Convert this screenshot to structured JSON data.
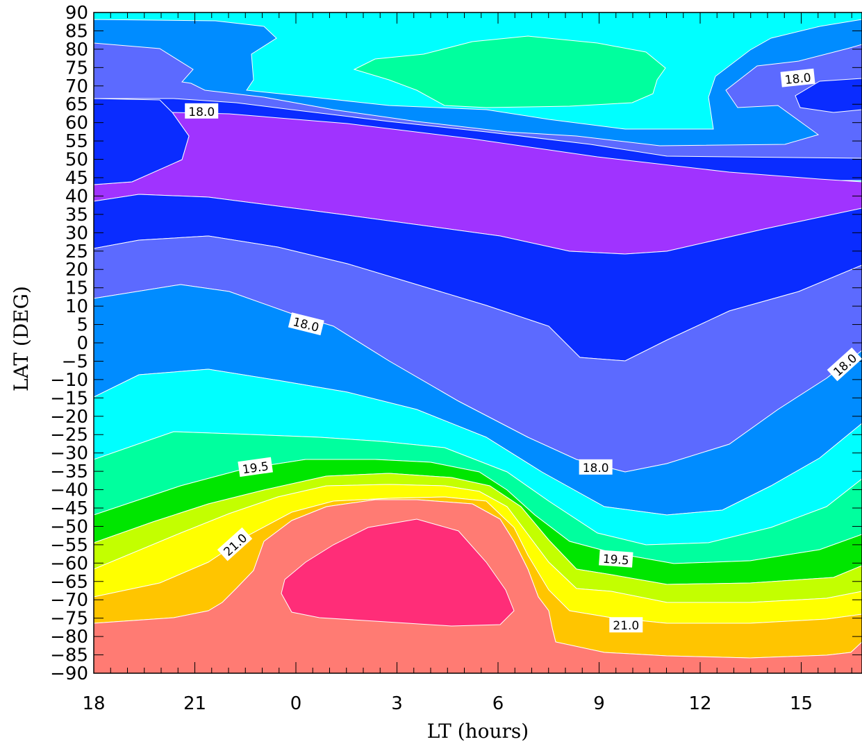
{
  "chart_data": {
    "type": "contour",
    "title": "",
    "xlabel": "LT (hours)",
    "ylabel": "LAT (DEG)",
    "x_ticks": [
      "18",
      "21",
      "0",
      "3",
      "6",
      "9",
      "12",
      "15"
    ],
    "x_minor_step_hours": 0.5,
    "x_range_hours_from_18": [
      0,
      22.8
    ],
    "y_ticks": [
      90,
      85,
      80,
      75,
      70,
      65,
      60,
      55,
      50,
      45,
      40,
      35,
      30,
      25,
      20,
      15,
      10,
      5,
      0,
      -5,
      -10,
      -15,
      -20,
      -25,
      -30,
      -35,
      -40,
      -45,
      -50,
      -55,
      -60,
      -65,
      -70,
      -75,
      -80,
      -85,
      -90
    ],
    "ylim": [
      -90,
      90
    ],
    "grid": false,
    "legend": "none",
    "contour_levels": [
      16.5,
      17.0,
      17.5,
      18.0,
      18.5,
      19.0,
      19.5,
      20.0,
      20.5,
      21.0,
      21.5
    ],
    "fill_colors": {
      "below_16.5": "#a033ff",
      "16.5_17.0": "#0a2cff",
      "17.0_17.5": "#5c6aff",
      "17.5_18.0": "#5c6aff",
      "18.0_18.5": "#008cff",
      "18.5_19.0": "#00ffff",
      "19.0_19.5": "#00ff9e",
      "19.5_20.0": "#00e600",
      "20.0_20.5": "#c3ff00",
      "20.5_21.0": "#ffff00",
      "21.0_21.5": "#ffc500",
      "21.5_22.0": "#ff7b73",
      "above_22.0": "#ff2d78"
    },
    "contour_labels": [
      {
        "text": "18.0",
        "lt_from_18": 3.2,
        "lat": 63,
        "angle": 0
      },
      {
        "text": "18.0",
        "lt_from_18": 20.9,
        "lat": 72,
        "angle": -6
      },
      {
        "text": "18.0",
        "lt_from_18": 6.3,
        "lat": 5,
        "angle": 14
      },
      {
        "text": "18.0",
        "lt_from_18": 22.3,
        "lat": -6,
        "angle": -42
      },
      {
        "text": "18.0",
        "lt_from_18": 14.9,
        "lat": -34,
        "angle": 0
      },
      {
        "text": "19.5",
        "lt_from_18": 4.8,
        "lat": -34,
        "angle": -8
      },
      {
        "text": "19.5",
        "lt_from_18": 15.5,
        "lat": -59,
        "angle": 4
      },
      {
        "text": "21.0",
        "lt_from_18": 4.2,
        "lat": -55,
        "angle": -42
      },
      {
        "text": "21.0",
        "lt_from_18": 15.8,
        "lat": -77,
        "angle": 0
      }
    ]
  }
}
